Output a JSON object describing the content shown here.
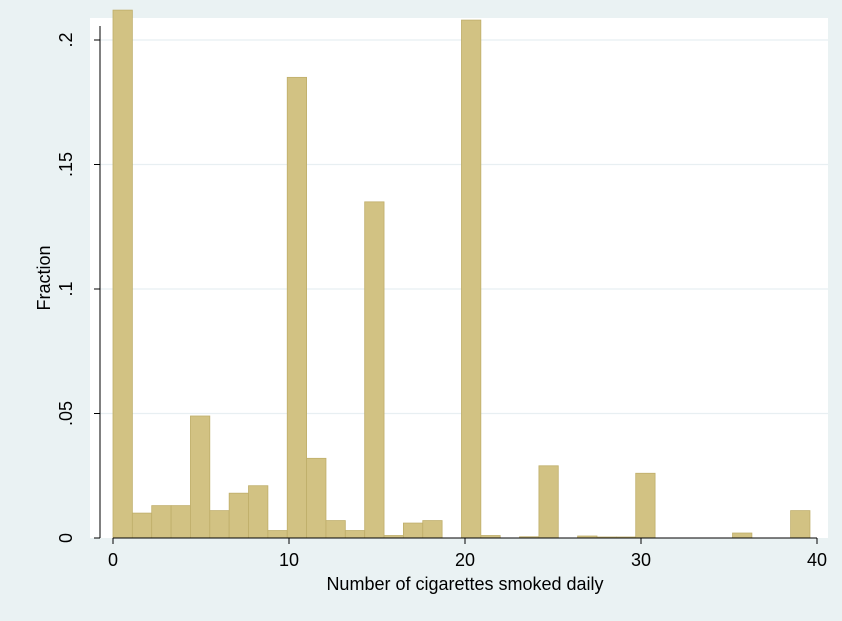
{
  "chart_data": {
    "type": "bar",
    "xlabel": "Number of cigarettes smoked daily",
    "ylabel": "Fraction",
    "xlim": [
      -0.5,
      40.5
    ],
    "ylim": [
      0,
      0.22
    ],
    "x_ticks": [
      {
        "value": 0,
        "label": "0"
      },
      {
        "value": 10,
        "label": "10"
      },
      {
        "value": 20,
        "label": "20"
      },
      {
        "value": 30,
        "label": "30"
      },
      {
        "value": 40,
        "label": "40"
      }
    ],
    "y_ticks": [
      {
        "value": 0,
        "label": "0"
      },
      {
        "value": 0.05,
        "label": ".05"
      },
      {
        "value": 0.1,
        "label": ".1"
      },
      {
        "value": 0.15,
        "label": ".15"
      },
      {
        "value": 0.2,
        "label": ".2"
      }
    ],
    "grid": true,
    "bin_width": 1.1,
    "bars": [
      {
        "x": 0.55,
        "value": 0.212
      },
      {
        "x": 1.65,
        "value": 0.01
      },
      {
        "x": 2.75,
        "value": 0.013
      },
      {
        "x": 3.85,
        "value": 0.013
      },
      {
        "x": 4.95,
        "value": 0.049
      },
      {
        "x": 6.05,
        "value": 0.011
      },
      {
        "x": 7.15,
        "value": 0.018
      },
      {
        "x": 8.25,
        "value": 0.021
      },
      {
        "x": 9.35,
        "value": 0.003
      },
      {
        "x": 10.45,
        "value": 0.185
      },
      {
        "x": 11.55,
        "value": 0.032
      },
      {
        "x": 12.65,
        "value": 0.007
      },
      {
        "x": 13.75,
        "value": 0.003
      },
      {
        "x": 14.85,
        "value": 0.135
      },
      {
        "x": 15.95,
        "value": 0.001
      },
      {
        "x": 17.05,
        "value": 0.006
      },
      {
        "x": 18.15,
        "value": 0.007
      },
      {
        "x": 20.35,
        "value": 0.208
      },
      {
        "x": 21.45,
        "value": 0.001
      },
      {
        "x": 23.65,
        "value": 0.0005
      },
      {
        "x": 24.75,
        "value": 0.029
      },
      {
        "x": 26.95,
        "value": 0.0008
      },
      {
        "x": 28.05,
        "value": 0.0004
      },
      {
        "x": 29.15,
        "value": 0.0004
      },
      {
        "x": 30.25,
        "value": 0.026
      },
      {
        "x": 35.75,
        "value": 0.002
      },
      {
        "x": 39.05,
        "value": 0.011
      }
    ],
    "colors": {
      "bar_fill": "#d2c283",
      "bar_stroke": "#bfae6a",
      "plot_bg": "#ffffff",
      "page_bg": "#eaf2f3",
      "grid": "#e8eff2",
      "axis": "#000000"
    }
  }
}
